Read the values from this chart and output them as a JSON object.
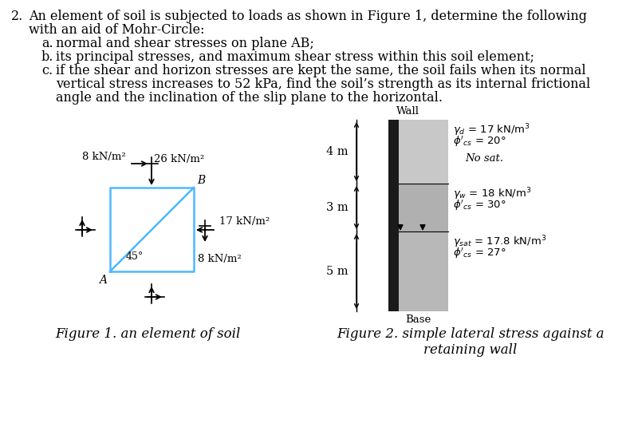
{
  "bg_color": "#ffffff",
  "fig1_caption": "Figure 1. an element of soil",
  "fig2_caption": "Figure 2. simple lateral stress against a\nretaining wall",
  "fig1": {
    "square_color": "#4db8ff",
    "square_lw": 1.8,
    "label_26": "26 kN/m²",
    "label_8_left": "8 kN/m²",
    "label_17": "17 kN/m²",
    "label_8_bot": "8 kN/m²",
    "label_45": "45°",
    "label_A": "A",
    "label_B": "B"
  },
  "fig2": {
    "wall_color": "#1a1a1a",
    "soil1_color": "#c8c8c8",
    "soil2_color": "#b0b0b0",
    "soil3_color": "#b8b8b8",
    "depth1": "4 m",
    "depth2": "3 m",
    "depth3": "5 m",
    "wall_label": "Wall",
    "base_label": "Base"
  },
  "text": {
    "line1a": "2.",
    "line1b": "An element of soil is subjected to loads as shown in Figure 1, determine the following",
    "line2": "with an aid of Mohr-Circle:",
    "item_a_label": "a.",
    "item_a": "normal and shear stresses on plane AB;",
    "item_b_label": "b.",
    "item_b": "its principal stresses, and maximum shear stress within this soil element;",
    "item_c_label": "c.",
    "item_c1": "if the shear and horizon stresses are kept the same, the soil fails when its normal",
    "item_c2": "vertical stress increases to 52 kPa, find the soil’s strength as its internal frictional",
    "item_c3": "angle and the inclination of the slip plane to the horizontal."
  }
}
